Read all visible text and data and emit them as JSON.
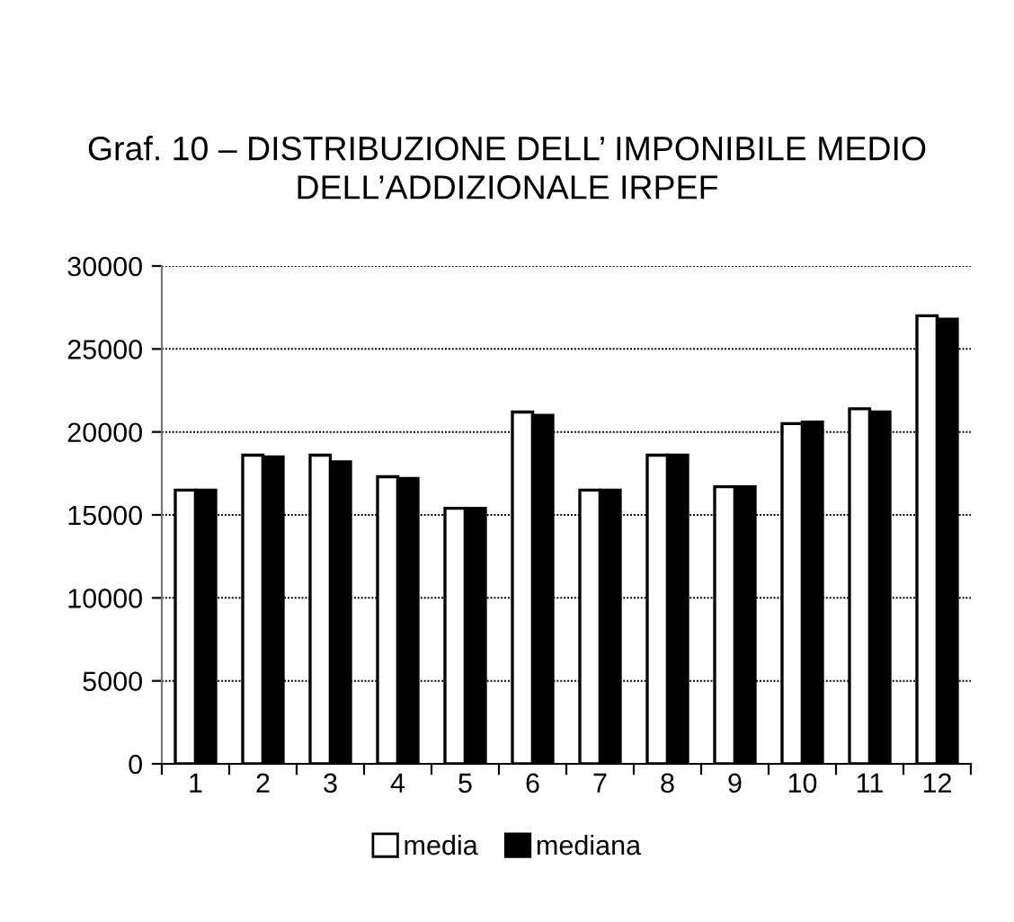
{
  "chart_data": {
    "type": "bar",
    "title": "Graf. 10 – DISTRIBUZIONE DELL’ IMPONIBILE MEDIO\nDELL’ADDIZIONALE IRPEF",
    "categories": [
      "1",
      "2",
      "3",
      "4",
      "5",
      "6",
      "7",
      "8",
      "9",
      "10",
      "11",
      "12"
    ],
    "series": [
      {
        "name": "media",
        "color": "#ffffff",
        "values": [
          16500,
          18600,
          18600,
          17300,
          15400,
          21200,
          16500,
          18600,
          16700,
          20500,
          21400,
          27000
        ]
      },
      {
        "name": "mediana",
        "color": "#000000",
        "values": [
          16500,
          18500,
          18200,
          17200,
          15400,
          21000,
          16500,
          18600,
          16700,
          20600,
          21200,
          26800
        ]
      }
    ],
    "ylim": [
      0,
      30000
    ],
    "yticks": [
      0,
      5000,
      10000,
      15000,
      20000,
      25000,
      30000
    ],
    "grid": "y",
    "legend": "bottom"
  }
}
